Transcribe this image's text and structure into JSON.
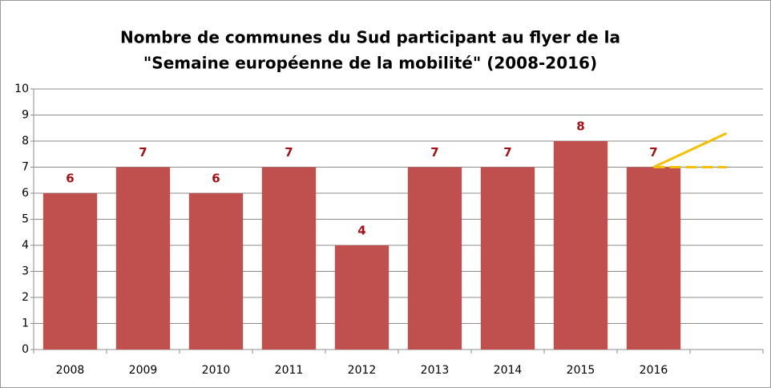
{
  "chart_data": {
    "type": "bar",
    "title": [
      "Nombre de communes du Sud participant au flyer de la",
      "\"Semaine européenne de la mobilité\" (2008-2016)"
    ],
    "categories": [
      "2008",
      "2009",
      "2010",
      "2011",
      "2012",
      "2013",
      "2014",
      "2015",
      "2016",
      null
    ],
    "series": [
      {
        "type": "bar",
        "color": "#c0504d",
        "values": [
          6,
          7,
          6,
          7,
          4,
          7,
          7,
          8,
          7,
          null
        ]
      },
      {
        "type": "line",
        "color": "#f5c000",
        "dash": false,
        "values": [
          null,
          null,
          null,
          null,
          null,
          null,
          null,
          null,
          7,
          8.3
        ]
      },
      {
        "type": "line",
        "color": "#f5c000",
        "dash": true,
        "values": [
          null,
          null,
          null,
          null,
          null,
          null,
          null,
          null,
          7,
          7
        ]
      }
    ],
    "ylim": [
      0,
      10
    ],
    "yticks": [
      0,
      1,
      2,
      3,
      4,
      5,
      6,
      7,
      8,
      9,
      10
    ],
    "grid": true
  }
}
